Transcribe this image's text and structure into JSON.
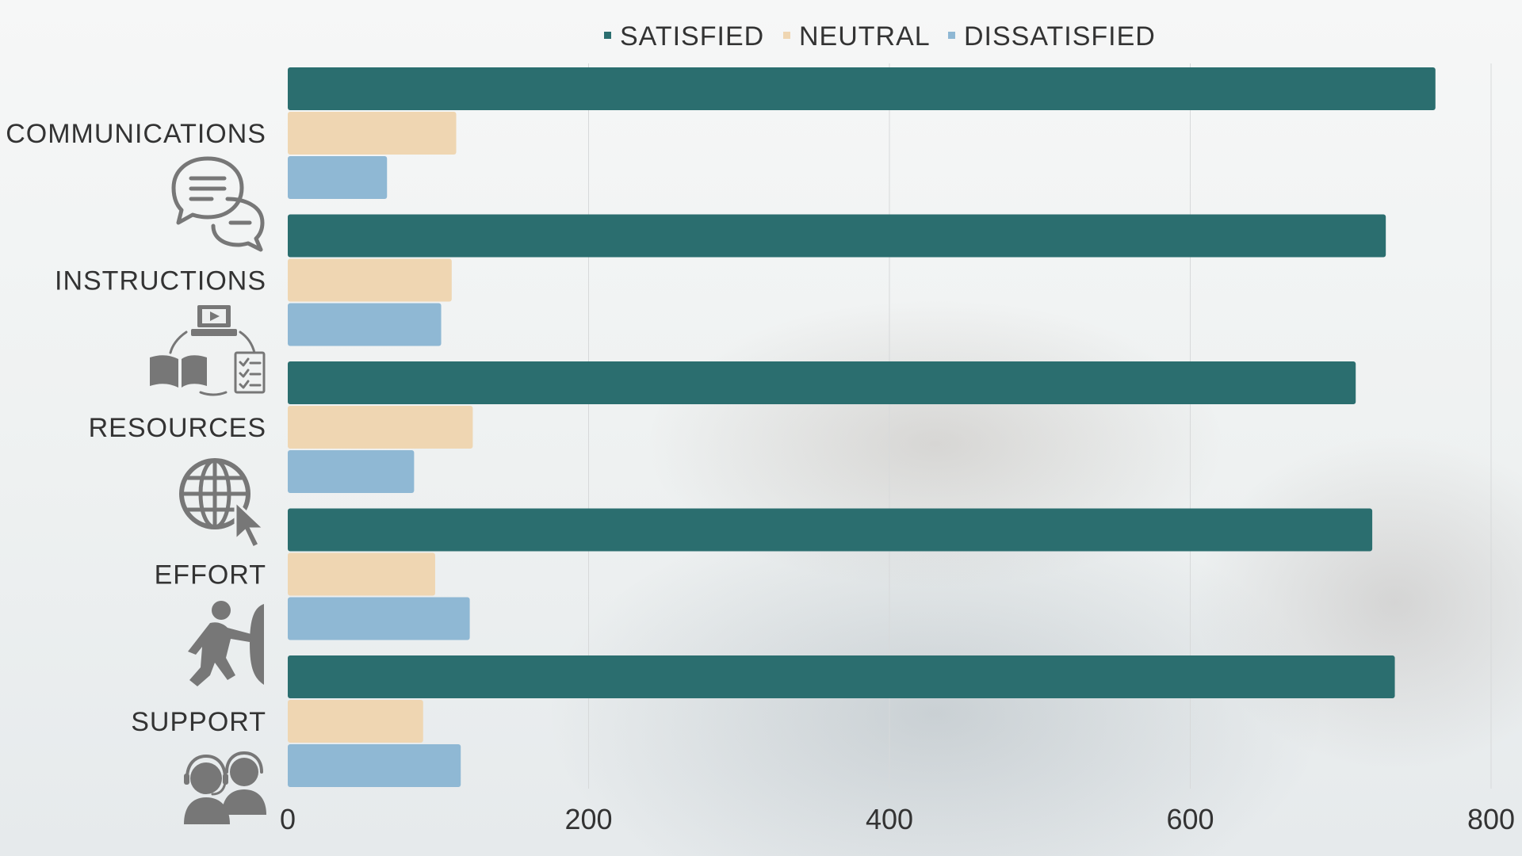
{
  "chart_data": {
    "type": "bar",
    "orientation": "horizontal",
    "categories": [
      "COMMUNICATIONS",
      "INSTRUCTIONS",
      "RESOURCES",
      "EFFORT",
      "SUPPORT"
    ],
    "series": [
      {
        "name": "SATISFIED",
        "color": "#2b6e6f",
        "values": [
          763,
          730,
          710,
          721,
          736
        ]
      },
      {
        "name": "NEUTRAL",
        "color": "#efd6b2",
        "values": [
          112,
          109,
          123,
          98,
          90
        ]
      },
      {
        "name": "DISSATISFIED",
        "color": "#8fb8d4",
        "values": [
          66,
          102,
          84,
          121,
          115
        ]
      }
    ],
    "xlim": [
      0,
      800
    ],
    "xticks": [
      "0",
      "200",
      "400",
      "600",
      "800"
    ],
    "grid": "vertical",
    "legend_position": "top-center",
    "category_icons": [
      "chat-bubbles-icon",
      "laptop-book-checklist-icon",
      "globe-cursor-icon",
      "person-pushing-icon",
      "headset-support-icon"
    ]
  }
}
